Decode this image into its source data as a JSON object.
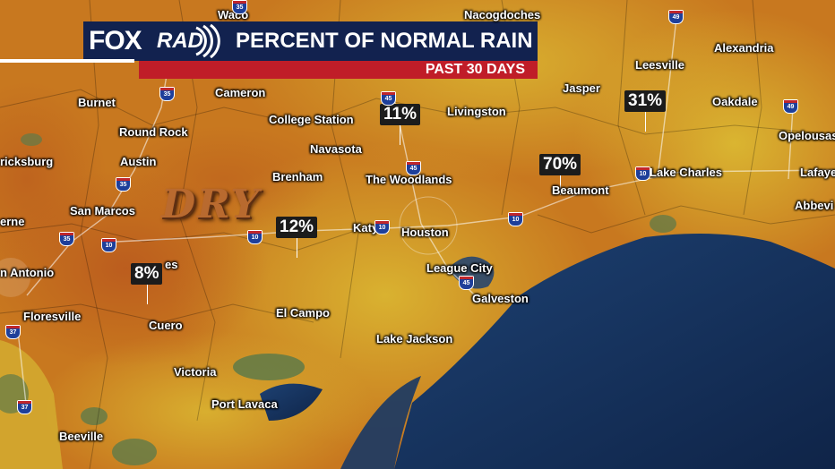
{
  "banner": {
    "logo_fox": "FOX",
    "logo_rad": "RAD",
    "title": "PERCENT OF NORMAL RAIN",
    "subtitle": "PAST 30 DAYS"
  },
  "overlay_label": "DRY",
  "percent_labels": [
    {
      "name": "pct-11",
      "text": "11%"
    },
    {
      "name": "pct-31",
      "text": "31%"
    },
    {
      "name": "pct-70",
      "text": "70%"
    },
    {
      "name": "pct-12",
      "text": "12%"
    },
    {
      "name": "pct-8",
      "text": "8%"
    }
  ],
  "cities": [
    "Waco",
    "Nacogdoches",
    "Alexandria",
    "Leesville",
    "Burnet",
    "Cameron",
    "College Station",
    "Livingston",
    "Jasper",
    "Oakdale",
    "Round Rock",
    "Navasota",
    "Opelousas",
    "ricksburg",
    "Austin",
    "Brenham",
    "The Woodlands",
    "Beaumont",
    "Lake Charles",
    "Lafaye",
    "San Marcos",
    "Abbevi",
    "erne",
    "Katy",
    "Houston",
    "League City",
    "n Antonio",
    "es",
    "Galveston",
    "Floresville",
    "El Campo",
    "Cuero",
    "Lake Jackson",
    "Victoria",
    "Port Lavaca",
    "Beeville"
  ],
  "highways": [
    "35",
    "49",
    "35",
    "45",
    "49",
    "45",
    "35",
    "10",
    "10",
    "10",
    "10",
    "35",
    "10",
    "45",
    "37",
    "37"
  ],
  "colors": {
    "land_dry": "#c8781f",
    "land_wet": "#d9b531",
    "water": "#15315f",
    "banner_navy": "#12224f",
    "banner_red": "#c01d28"
  }
}
